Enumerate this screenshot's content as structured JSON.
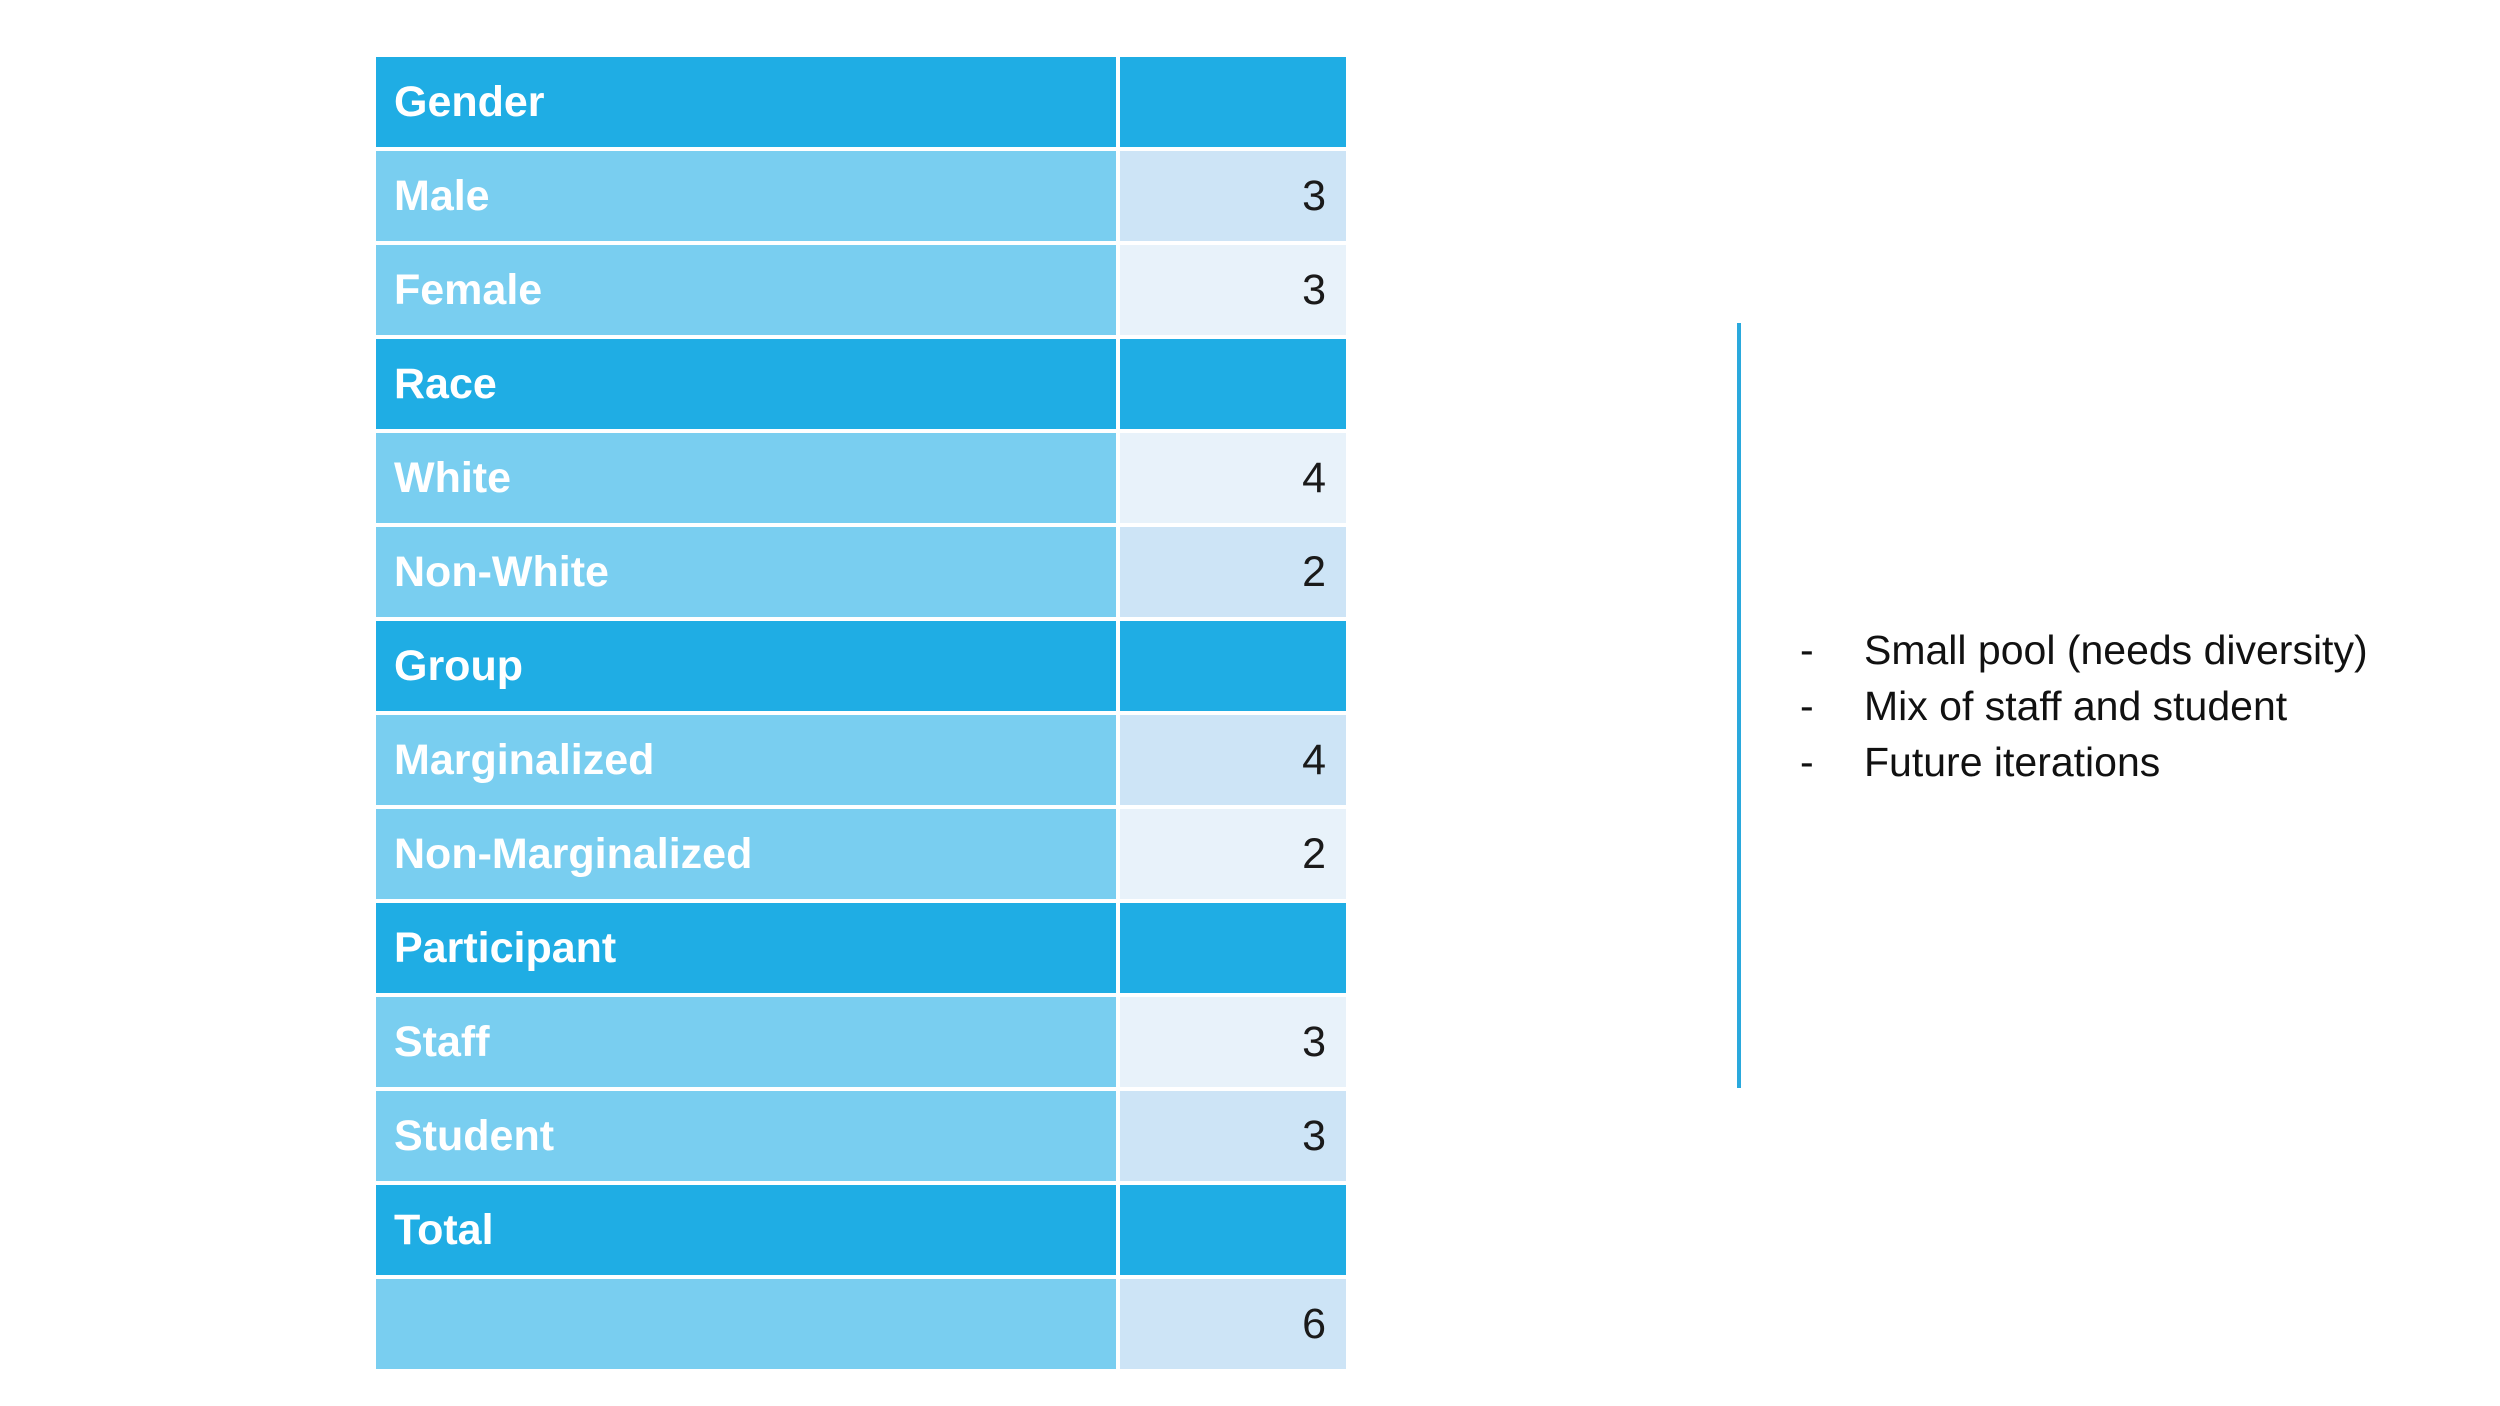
{
  "table": {
    "rows": [
      {
        "type": "header",
        "label": "Gender",
        "value": ""
      },
      {
        "type": "item",
        "shade": "a",
        "label": "Male",
        "value": "3"
      },
      {
        "type": "item",
        "shade": "b",
        "label": "Female",
        "value": "3"
      },
      {
        "type": "header",
        "label": "Race",
        "value": ""
      },
      {
        "type": "item",
        "shade": "b",
        "label": "White",
        "value": "4"
      },
      {
        "type": "item",
        "shade": "a",
        "label": "Non-White",
        "value": "2"
      },
      {
        "type": "header",
        "label": "Group",
        "value": ""
      },
      {
        "type": "item",
        "shade": "a",
        "label": "Marginalized",
        "value": "4"
      },
      {
        "type": "item",
        "shade": "b",
        "label": "Non-Marginalized",
        "value": "2"
      },
      {
        "type": "header",
        "label": "Participant",
        "value": ""
      },
      {
        "type": "item",
        "shade": "b",
        "label": "Staff",
        "value": "3"
      },
      {
        "type": "item",
        "shade": "a",
        "label": "Student",
        "value": "3"
      },
      {
        "type": "header",
        "label": "Total",
        "value": ""
      },
      {
        "type": "item",
        "shade": "a",
        "label": "",
        "value": "6"
      }
    ]
  },
  "notes": {
    "bullet": "-",
    "items": [
      "Small pool (needs diversity)",
      "Mix of staff and student",
      "Future iterations"
    ]
  },
  "colors": {
    "header": "#1fade4",
    "label_cell": "#79cef0",
    "value_shade_a": "#cde4f6",
    "value_shade_b": "#e8f2fa",
    "divider": "#2aa9dd"
  }
}
